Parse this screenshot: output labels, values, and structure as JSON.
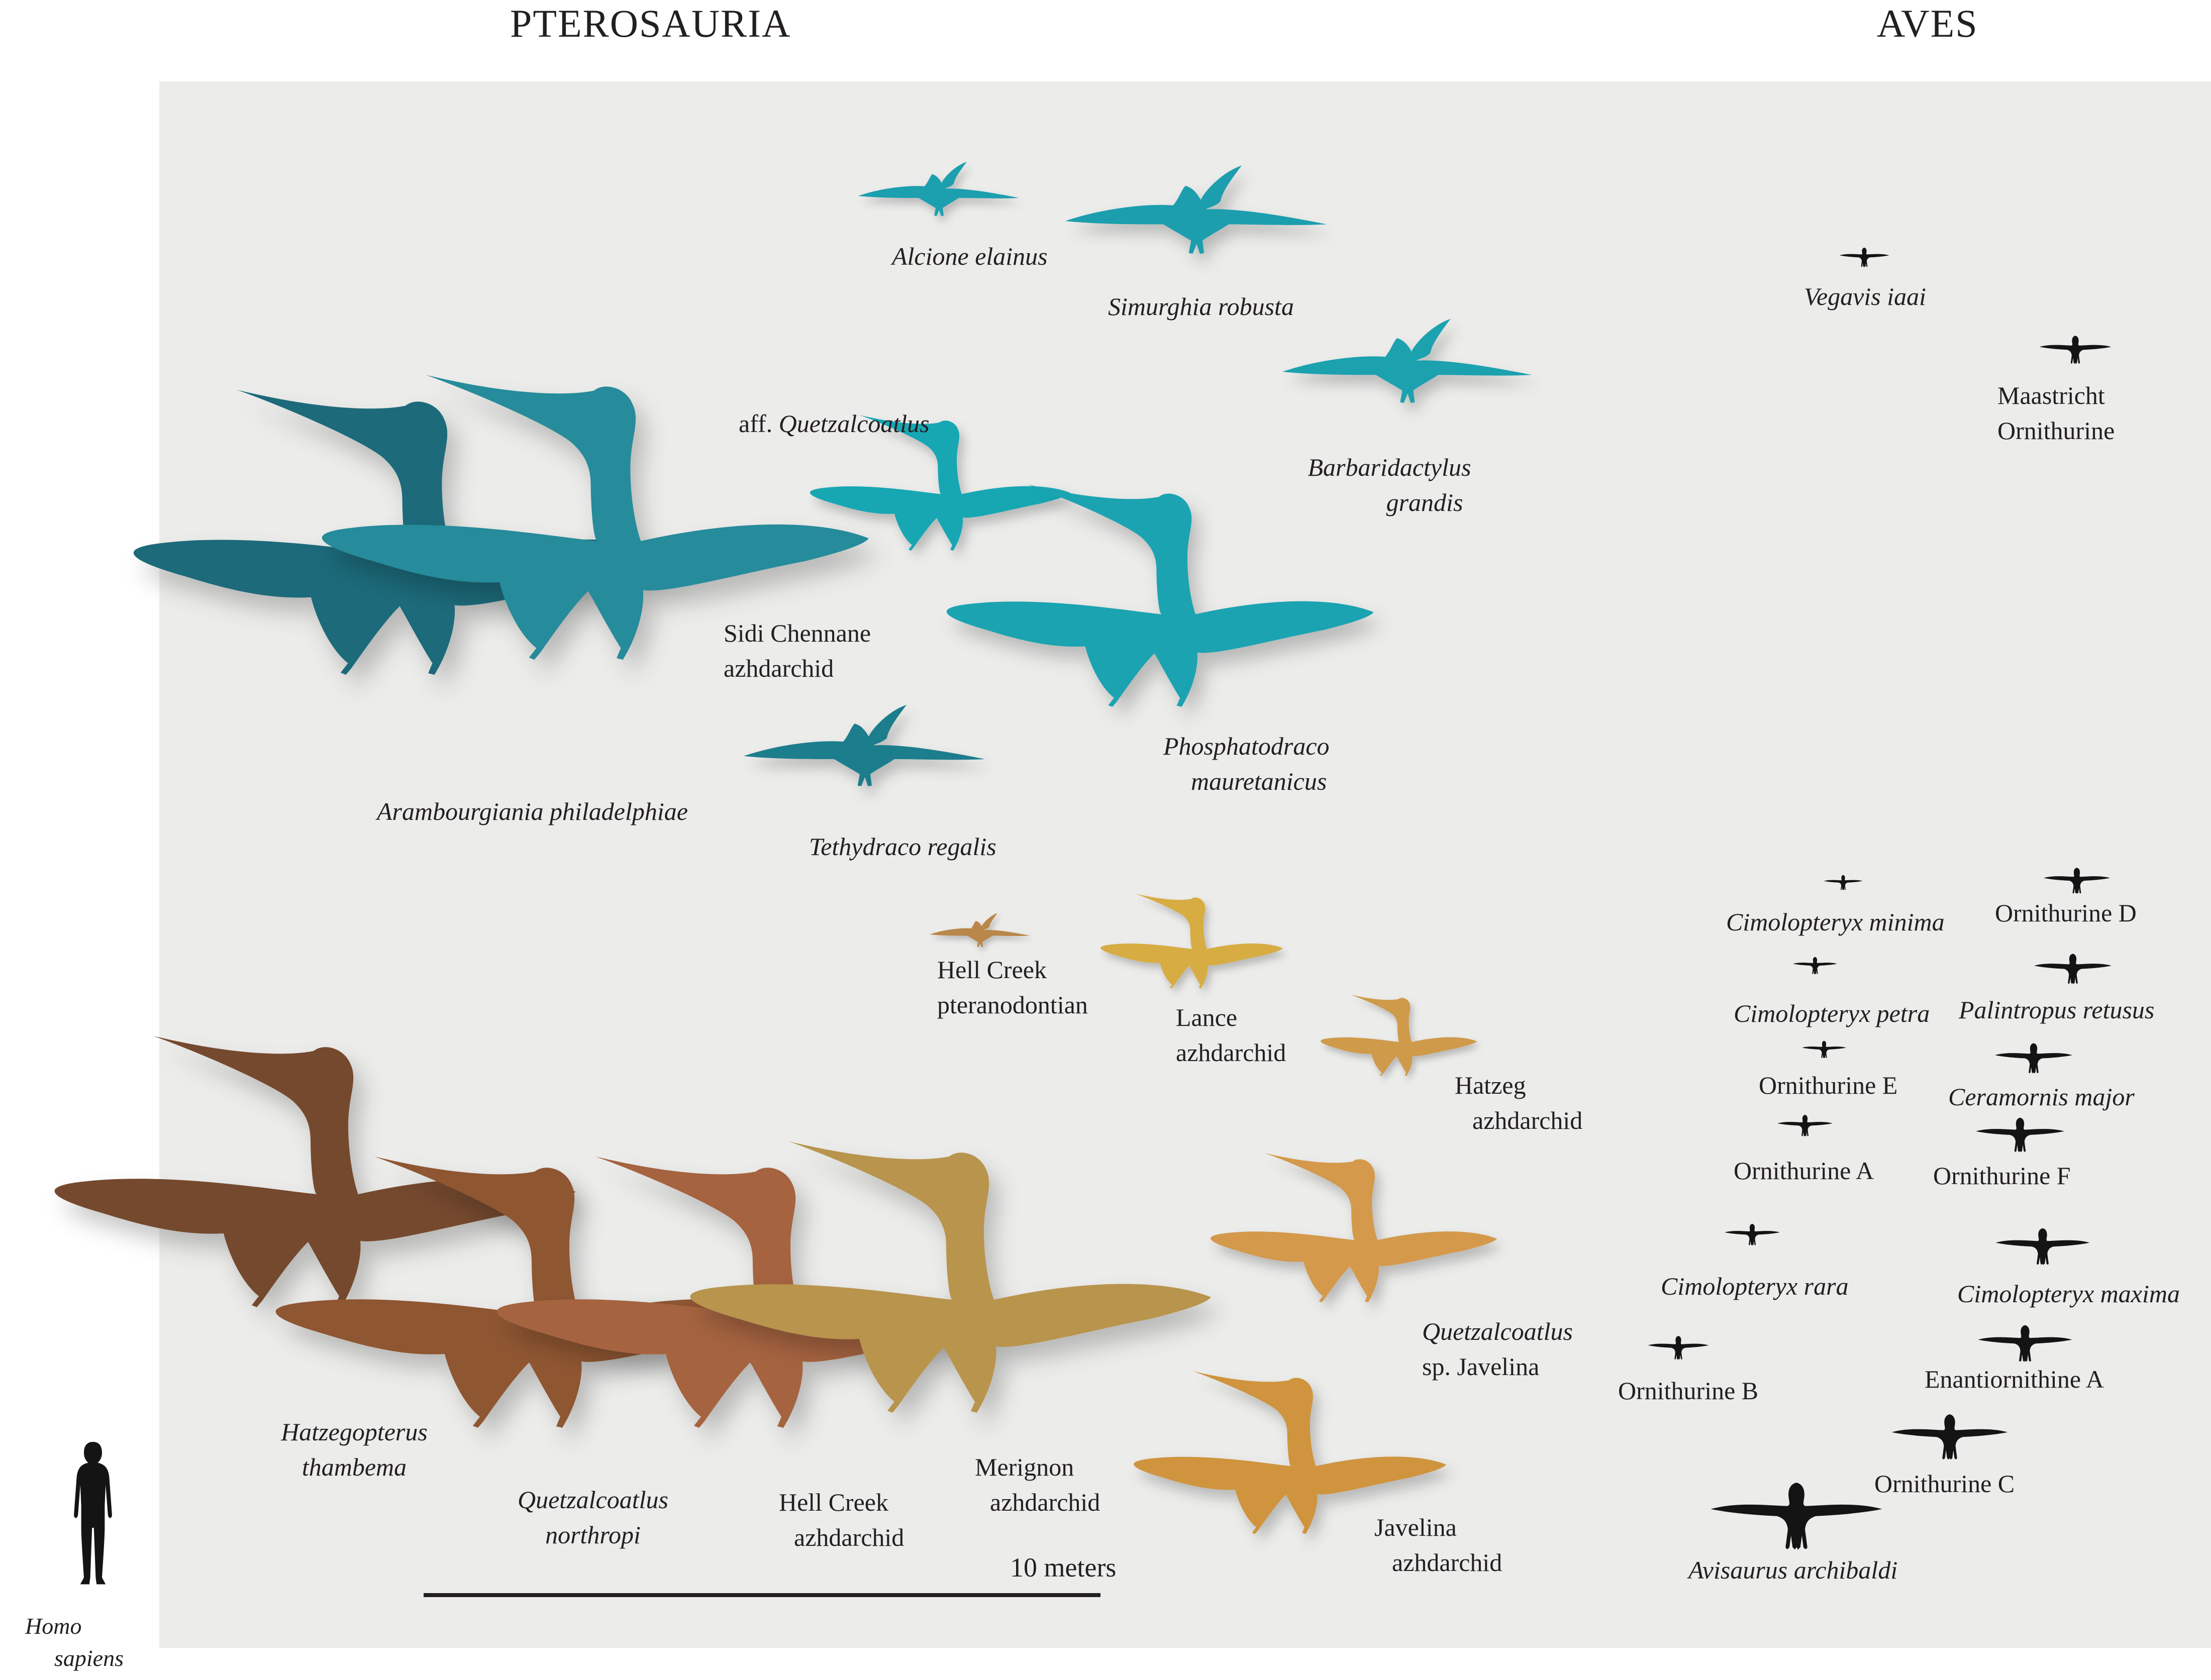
{
  "headers": {
    "pterosauria": "PTEROSAURIA",
    "aves": "AVES"
  },
  "colors": {
    "background": "#ffffff",
    "panel": "#ececeb",
    "label_text": "#231f20",
    "scale_bar": "#231f20",
    "bird_silhouette": "#141414",
    "human_silhouette": "#141414",
    "teal_dark": "#1f6b7a",
    "teal_mid": "#258b9a",
    "teal_bright": "#16a3b1",
    "brown_dark": "#744a2e",
    "brown_mid": "#8f5733",
    "brown_light": "#a5643f",
    "khaki": "#b8944e",
    "amber": "#cf9a49",
    "gold": "#d7ac42"
  },
  "scale_bar": {
    "label": "10 meters"
  },
  "human": {
    "label_line1": "Homo",
    "label_line2": "sapiens"
  },
  "pterosauria_labels": {
    "alcione": "Alcione elainus",
    "simurghia": "Simurghia robusta",
    "aff_quetz_prefix": "aff.",
    "aff_quetz_genus": "Quetzalcoatlus",
    "barbaridactylus_1": "Barbaridactylus",
    "barbaridactylus_2": "grandis",
    "sidi_1": "Sidi Chennane",
    "sidi_2": "azhdarchid",
    "phosphatodraco_1": "Phosphatodraco",
    "phosphatodraco_2": "mauretanicus",
    "tethydraco": "Tethydraco regalis",
    "arambourgiania": "Arambourgiania philadelphiae",
    "hellcreek_ptero_1": "Hell Creek",
    "hellcreek_ptero_2": "pteranodontian",
    "lance_1": "Lance",
    "lance_2": "azhdarchid",
    "hatzeg_1": "Hatzeg",
    "hatzeg_2": "azhdarchid",
    "qjavelina_1": "Quetzalcoatlus",
    "qjavelina_2": "sp. Javelina",
    "javelina_1": "Javelina",
    "javelina_2": "azhdarchid",
    "hatzegopterus_1": "Hatzegopterus",
    "hatzegopterus_2": "thambema",
    "qnorthropi_1": "Quetzalcoatlus",
    "qnorthropi_2": "northropi",
    "hellcreek_az_1": "Hell Creek",
    "hellcreek_az_2": "azhdarchid",
    "merignon_1": "Merignon",
    "merignon_2": "azhdarchid"
  },
  "aves_labels": {
    "vegavis": "Vegavis iaai",
    "maastricht_1": "Maastricht",
    "maastricht_2": "Ornithurine",
    "cimolopteryx_minima": "Cimolopteryx minima",
    "ornithurine_d": "Ornithurine D",
    "cimolopteryx_petra": "Cimolopteryx petra",
    "palintropus": "Palintropus retusus",
    "ornithurine_e": "Ornithurine E",
    "ceramornis": "Ceramornis major",
    "ornithurine_a": "Ornithurine A",
    "ornithurine_f": "Ornithurine F",
    "cimolopteryx_rara": "Cimolopteryx rara",
    "cimolopteryx_maxima": "Cimolopteryx maxima",
    "ornithurine_b": "Ornithurine B",
    "enantiornithine_a": "Enantiornithine A",
    "ornithurine_c": "Ornithurine C",
    "avisaurus": "Avisaurus archibaldi"
  }
}
